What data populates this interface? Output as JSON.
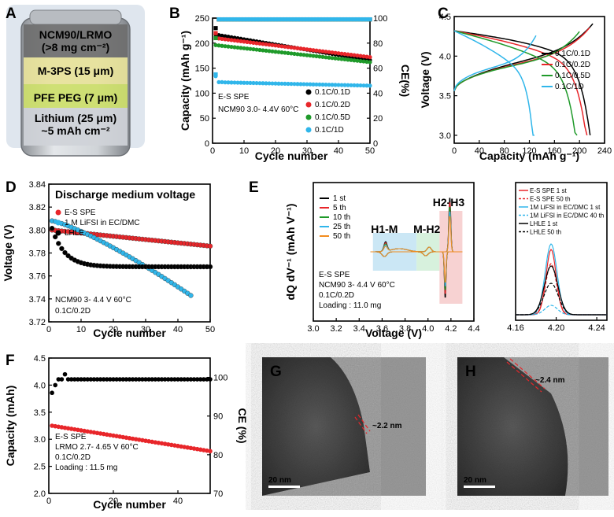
{
  "panels": {
    "A": {
      "label": "A",
      "layers": [
        {
          "text_1": "NCM90/LRMO",
          "text_2": "(>8 mg cm⁻²)",
          "color": "#6e6e6e"
        },
        {
          "text_1": "M-3PS (15 μm)",
          "color": "#e8e39a"
        },
        {
          "text_1": "PFE PEG (7 μm)",
          "color": "#cde06a"
        },
        {
          "text_1": "Lithium (25 μm)",
          "text_2": "~5 mAh cm⁻²",
          "color": "#cfd3d8"
        }
      ]
    },
    "B": {
      "label": "B"
    },
    "C": {
      "label": "C"
    },
    "D": {
      "label": "D"
    },
    "E": {
      "label": "E"
    },
    "F": {
      "label": "F"
    },
    "G": {
      "label": "G",
      "scale_label": "20 nm",
      "lattice_label": "~2.2 nm"
    },
    "H": {
      "label": "H",
      "scale_label": "20 nm",
      "lattice_label": "~2.4 nm"
    }
  },
  "colors": {
    "black": "#000000",
    "red": "#e8262a",
    "green": "#1f9a2a",
    "blue": "#30b6ea",
    "orange": "#f28c1e"
  },
  "chart_data": [
    {
      "id": "B",
      "type": "scatter",
      "xlabel": "Cycle number",
      "ylabel": "Capacity (mAh g⁻¹)",
      "y2label": "CE(%)",
      "xlim": [
        0,
        50
      ],
      "ylim": [
        0,
        250
      ],
      "y2lim": [
        0,
        100
      ],
      "xticks": [
        0,
        10,
        20,
        30,
        40,
        50
      ],
      "yticks": [
        0,
        50,
        100,
        150,
        200,
        250
      ],
      "y2ticks": [
        0,
        20,
        40,
        60,
        80,
        100
      ],
      "annotation": [
        "E-S SPE",
        "NCM90 3.0- 4.4V 60°C"
      ],
      "legend_position": "bottom-right",
      "series": [
        {
          "name": "0.1C/0.1D",
          "color": "#000000",
          "start": 217,
          "end": 166
        },
        {
          "name": "0.1C/0.2D",
          "color": "#e8262a",
          "start": 210,
          "end": 172
        },
        {
          "name": "0.1C/0.5D",
          "color": "#1f9a2a",
          "start": 196,
          "end": 162
        },
        {
          "name": "0.1C/1D",
          "color": "#30b6ea",
          "start": 122,
          "end": 115
        }
      ],
      "ce": {
        "first_cycle": [
          92,
          88,
          84,
          55
        ],
        "stable": 99
      }
    },
    {
      "id": "C",
      "type": "line",
      "xlabel": "Capacity (mAh g⁻¹)",
      "ylabel": "Voltage (V)",
      "xlim": [
        0,
        240
      ],
      "ylim": [
        2.9,
        4.5
      ],
      "xticks": [
        0,
        40,
        80,
        120,
        160,
        200,
        240
      ],
      "yticks": [
        3.0,
        3.5,
        4.0,
        4.5
      ],
      "legend_position": "top-right",
      "series": [
        {
          "name": "0.1C/0.1D",
          "color": "#000000",
          "capacity": 217
        },
        {
          "name": "0.1C/0.2D",
          "color": "#e8262a",
          "capacity": 212
        },
        {
          "name": "0.1C/0.5D",
          "color": "#1f9a2a",
          "capacity": 196
        },
        {
          "name": "0.1C/1D",
          "color": "#30b6ea",
          "capacity": 128
        }
      ]
    },
    {
      "id": "D",
      "type": "scatter",
      "title": "Discharge medium voltage",
      "xlabel": "Cycle number",
      "ylabel": "Voltage (V)",
      "xlim": [
        0,
        50
      ],
      "ylim": [
        3.72,
        3.84
      ],
      "xticks": [
        0,
        10,
        20,
        30,
        40,
        50
      ],
      "yticks": [
        3.72,
        3.74,
        3.76,
        3.78,
        3.8,
        3.82,
        3.84
      ],
      "annotation": [
        "NCM90  3- 4.4 V 60°C",
        "0.1C/0.2D"
      ],
      "legend_position": "top-left",
      "series": [
        {
          "name": "E-S SPE",
          "color": "#e8262a",
          "start": 3.8,
          "end": 3.786,
          "n": 50
        },
        {
          "name": "1 M LiFSI in EC/DMC",
          "color": "#30b6ea",
          "start": 3.808,
          "end": 3.743,
          "n": 44
        },
        {
          "name": "LHLE",
          "color": "#000000",
          "start": 3.811,
          "end": 3.768,
          "n": 50
        }
      ]
    },
    {
      "id": "E",
      "type": "line",
      "xlabel": "Voltage (V)",
      "ylabel": "dQ dV⁻¹ (mAh V⁻¹)",
      "xlim": [
        3.0,
        4.4
      ],
      "xticks": [
        3.0,
        3.2,
        3.4,
        3.6,
        3.8,
        4.0,
        4.2,
        4.4
      ],
      "annotation": [
        "E-S SPE",
        "NCM90  3- 4.4 V 60°C",
        "0.1C/0.2D",
        "Loading : 11.0 mg"
      ],
      "regions": [
        "H1-M",
        "M-H2",
        "H2-H3"
      ],
      "legend_position": "top-left",
      "series": [
        {
          "name": "1 st",
          "color": "#000000"
        },
        {
          "name": "5 th",
          "color": "#e8262a"
        },
        {
          "name": "10 th",
          "color": "#1f9a2a"
        },
        {
          "name": "25 th",
          "color": "#30b6ea"
        },
        {
          "name": "50 th",
          "color": "#f28c1e"
        }
      ]
    },
    {
      "id": "E-inset",
      "type": "line",
      "xlim": [
        4.16,
        4.25
      ],
      "xticks": [
        4.16,
        4.2,
        4.24
      ],
      "legend_position": "top",
      "series": [
        {
          "name": "E-S SPE 1 st",
          "color": "#e8262a",
          "style": "solid",
          "peak": 0.83
        },
        {
          "name": "E-S SPE 50 th",
          "color": "#e8262a",
          "style": "dashed",
          "peak": 0.65
        },
        {
          "name": "1M LiFSI in EC/DMC 1 st",
          "color": "#30b6ea",
          "style": "solid",
          "peak": 0.9
        },
        {
          "name": "1M LiFSI in EC/DMC 40 th",
          "color": "#30b6ea",
          "style": "dashed",
          "peak": 0.12
        },
        {
          "name": "LHLE 1 st",
          "color": "#000000",
          "style": "solid",
          "peak": 0.62
        },
        {
          "name": "LHLE 50 th",
          "color": "#000000",
          "style": "dashed",
          "peak": 0.4
        }
      ]
    },
    {
      "id": "F",
      "type": "scatter",
      "xlabel": "Cycle number",
      "ylabel": "Capacity (mAh)",
      "y2label": "CE (%)",
      "xlim": [
        0,
        50
      ],
      "ylim": [
        2.0,
        4.5
      ],
      "y2lim": [
        70,
        105
      ],
      "xticks": [
        0,
        20,
        40
      ],
      "yticks": [
        2.0,
        2.5,
        3.0,
        3.5,
        4.0,
        4.5
      ],
      "y2ticks": [
        70,
        80,
        90,
        100
      ],
      "annotation": [
        "E-S SPE",
        "LRMO 2.7- 4.65 V 60°C",
        "0.1C/0.2D",
        "Loading : 11.5 mg"
      ],
      "series": [
        {
          "name": "Capacity",
          "color": "#e8262a",
          "start": 3.25,
          "end": 2.78
        },
        {
          "name": "CE",
          "color": "#000000",
          "value": 99.5
        }
      ]
    }
  ]
}
